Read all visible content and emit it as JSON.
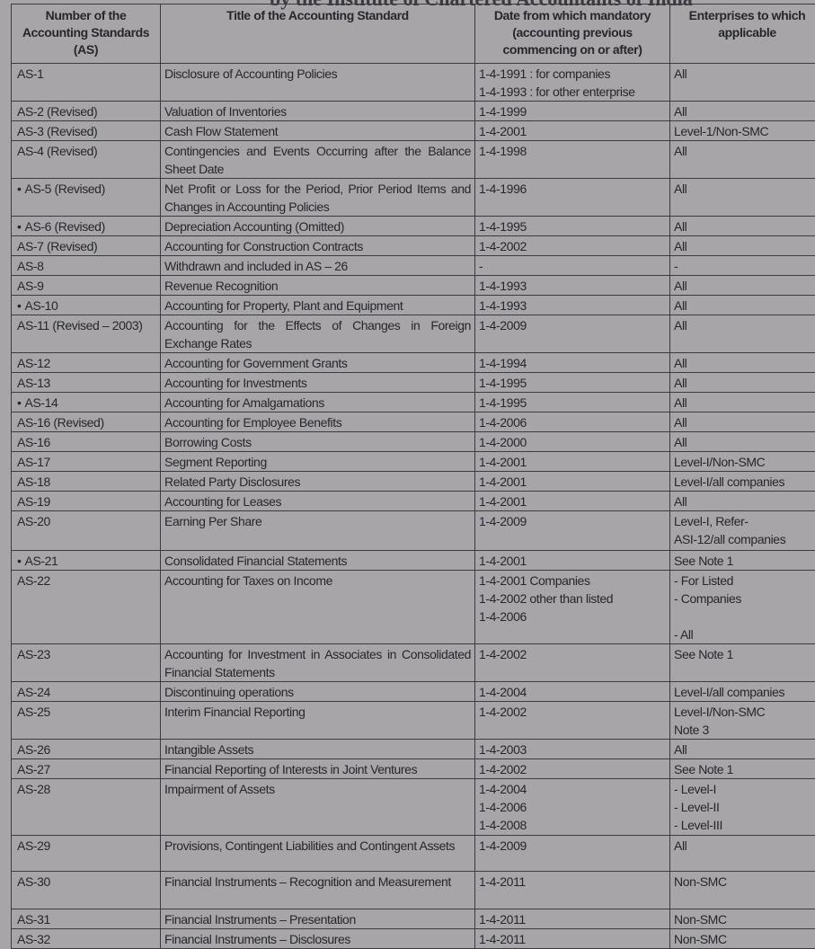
{
  "page_title": "by the Institute of Chartered Accountants of India",
  "headers": [
    "Number of the Accounting Standards (AS)",
    "Title of the Accounting Standard",
    "Date from which mandatory (accounting previous commencing on or after)",
    "Enterprises to which applicable"
  ],
  "rows": [
    {
      "as": "AS-1",
      "bullet": false,
      "title": "Disclosure of Accounting Policies",
      "date": "1-4-1991 : for companies\n1-4-1993 : for other enterprise",
      "applicable": "All",
      "h": 42
    },
    {
      "as": "AS-2 (Revised)",
      "bullet": false,
      "title": "Valuation of Inventories",
      "date": "1-4-1999",
      "applicable": "All",
      "h": 20
    },
    {
      "as": "AS-3 (Revised)",
      "bullet": false,
      "title": "Cash Flow Statement",
      "date": "1-4-2001",
      "applicable": "Level-1/Non-SMC",
      "h": 19
    },
    {
      "as": "AS-4 (Revised)",
      "bullet": false,
      "title": "Contingencies and Events Occurring after the Balance Sheet Date",
      "date": "1-4-1998",
      "applicable": "All",
      "h": 40
    },
    {
      "as": "AS-5 (Revised)",
      "bullet": true,
      "title": "Net Profit or Loss for the Period, Prior Period Items and Changes in Accounting Policies",
      "date": "1-4-1996",
      "applicable": "All",
      "h": 40
    },
    {
      "as": "AS-6 (Revised)",
      "bullet": true,
      "title": "Depreciation Accounting (Omitted)",
      "date": "1-4-1995",
      "applicable": "All",
      "h": 22
    },
    {
      "as": "AS-7 (Revised)",
      "bullet": false,
      "title": "Accounting for Construction Contracts",
      "date": "1-4-2002",
      "applicable": "All",
      "h": 20
    },
    {
      "as": "AS-8",
      "bullet": false,
      "title": "Withdrawn and included in AS – 26",
      "date": "-",
      "applicable": "-",
      "h": 20
    },
    {
      "as": "AS-9",
      "bullet": false,
      "title": "Revenue Recognition",
      "date": "1-4-1993",
      "applicable": "All",
      "h": 22
    },
    {
      "as": "AS-10",
      "bullet": true,
      "title": "Accounting for Property, Plant and Equipment",
      "date": "1-4-1993",
      "applicable": "All",
      "h": 22
    },
    {
      "as": "AS-11 (Revised – 2003)",
      "bullet": false,
      "title": "Accounting for the Effects of Changes in Foreign Exchange Rates",
      "date": "1-4-2009",
      "applicable": "All",
      "h": 42
    },
    {
      "as": "AS-12",
      "bullet": false,
      "title": "Accounting for Government Grants",
      "date": "1-4-1994",
      "applicable": "All",
      "h": 20
    },
    {
      "as": "AS-13",
      "bullet": false,
      "title": "Accounting for Investments",
      "date": "1-4-1995",
      "applicable": "All",
      "h": 22
    },
    {
      "as": "AS-14",
      "bullet": true,
      "title": "Accounting for Amalgamations",
      "date": "1-4-1995",
      "applicable": "All",
      "h": 22
    },
    {
      "as": "AS-16 (Revised)",
      "bullet": false,
      "title": "Accounting for Employee Benefits",
      "date": "1-4-2006",
      "applicable": "All",
      "h": 20
    },
    {
      "as": "AS-16",
      "bullet": false,
      "title": "Borrowing Costs",
      "date": "1-4-2000",
      "applicable": "All",
      "h": 22
    },
    {
      "as": "AS-17",
      "bullet": false,
      "title": "Segment Reporting",
      "date": "1-4-2001",
      "applicable": "Level-I/Non-SMC",
      "h": 21
    },
    {
      "as": "AS-18",
      "bullet": false,
      "title": "Related Party Disclosures",
      "date": "1-4-2001",
      "applicable": "Level-I/all companies",
      "h": 20
    },
    {
      "as": "AS-19",
      "bullet": false,
      "title": "Accounting for Leases",
      "date": "1-4-2001",
      "applicable": "All",
      "h": 21
    },
    {
      "as": "AS-20",
      "bullet": false,
      "title": "Earning Per Share",
      "date": "1-4-2009",
      "applicable": "Level-I, Refer-\nASI-12/all companies",
      "h": 44
    },
    {
      "as": "AS-21",
      "bullet": true,
      "title": "Consolidated Financial Statements",
      "date": "1-4-2001",
      "applicable": "See Note 1",
      "h": 20
    },
    {
      "as": "AS-22",
      "bullet": false,
      "title": "Accounting for Taxes on Income",
      "date": "1-4-2001 Companies\n1-4-2002 other than listed\n1-4-2006",
      "applicable": "- For Listed\n- Companies\n\n- All",
      "h": 80
    },
    {
      "as": "AS-23",
      "bullet": false,
      "title": "Accounting for Investment in Associates in Consolidated Financial Statements",
      "date": "1-4-2002",
      "applicable": "See Note 1",
      "h": 42
    },
    {
      "as": "AS-24",
      "bullet": false,
      "title": "Discontinuing operations",
      "date": "1-4-2004",
      "applicable": "Level-I/all companies",
      "h": 20
    },
    {
      "as": "AS-25",
      "bullet": false,
      "title": "Interim Financial Reporting",
      "date": "1-4-2002",
      "applicable": "Level-I/Non-SMC\nNote 3",
      "h": 40
    },
    {
      "as": "AS-26",
      "bullet": false,
      "title": "Intangible Assets",
      "date": "1-4-2003",
      "applicable": "All",
      "h": 20
    },
    {
      "as": "AS-27",
      "bullet": false,
      "title": "Financial Reporting of Interests in Joint Ventures",
      "date": "1-4-2002",
      "applicable": "See Note 1",
      "h": 20
    },
    {
      "as": "AS-28",
      "bullet": false,
      "title": "Impairment of Assets",
      "date": "1-4-2004\n1-4-2006\n1-4-2008",
      "applicable": "- Level-I\n- Level-II\n- Level-III",
      "h": 63
    },
    {
      "as": "AS-29",
      "bullet": false,
      "title": "Provisions, Contingent Liabilities and Contingent Assets",
      "date": "1-4-2009",
      "applicable": "All",
      "h": 40
    },
    {
      "as": "AS-30",
      "bullet": false,
      "title": "Financial Instruments – Recognition and Measurement",
      "date": "1-4-2011",
      "applicable": "Non-SMC",
      "h": 42
    },
    {
      "as": "AS-31",
      "bullet": false,
      "title": "Financial Instruments – Presentation",
      "date": "1-4-2011",
      "applicable": "Non-SMC",
      "h": 21
    },
    {
      "as": "AS-32",
      "bullet": false,
      "title": "Financial Instruments – Disclosures",
      "date": "1-4-2011",
      "applicable": "Non-SMC",
      "h": 22
    }
  ]
}
